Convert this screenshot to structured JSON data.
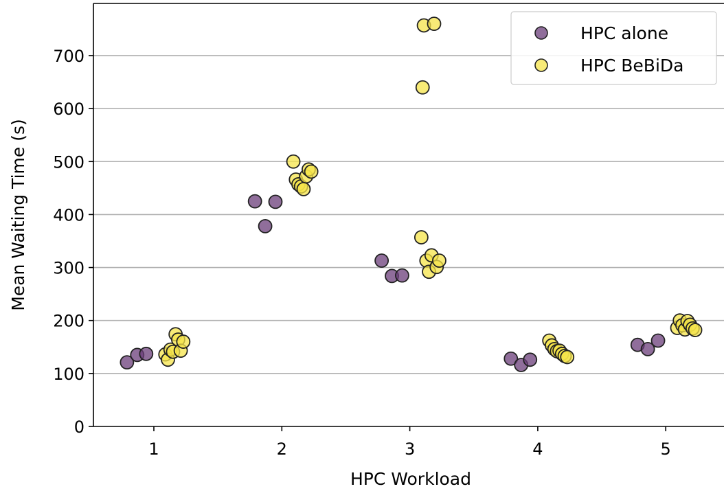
{
  "chart_data": {
    "type": "scatter",
    "xlabel": "HPC Workload",
    "ylabel": "Mean Waiting Time (s)",
    "xlim": [
      0.5,
      5.5
    ],
    "ylim": [
      0,
      800
    ],
    "xticks": [
      1,
      2,
      3,
      4,
      5
    ],
    "yticks": [
      0,
      100,
      200,
      300,
      400,
      500,
      600,
      700
    ],
    "grid": "horizontal",
    "legend_position": "top-right",
    "series": [
      {
        "name": "HPC alone",
        "color": "#6b3e7a",
        "points": [
          {
            "x": 0.79,
            "y": 121
          },
          {
            "x": 0.87,
            "y": 135
          },
          {
            "x": 0.94,
            "y": 137
          },
          {
            "x": 1.79,
            "y": 425
          },
          {
            "x": 1.87,
            "y": 378
          },
          {
            "x": 1.95,
            "y": 424
          },
          {
            "x": 2.78,
            "y": 313
          },
          {
            "x": 2.86,
            "y": 284
          },
          {
            "x": 2.94,
            "y": 285
          },
          {
            "x": 3.79,
            "y": 128
          },
          {
            "x": 3.87,
            "y": 116
          },
          {
            "x": 3.94,
            "y": 126
          },
          {
            "x": 4.78,
            "y": 154
          },
          {
            "x": 4.86,
            "y": 146
          },
          {
            "x": 4.94,
            "y": 162
          }
        ]
      },
      {
        "name": "HPC BeBiDa",
        "color": "#f5e44a",
        "points": [
          {
            "x": 1.09,
            "y": 136
          },
          {
            "x": 1.11,
            "y": 126
          },
          {
            "x": 1.13,
            "y": 145
          },
          {
            "x": 1.15,
            "y": 141
          },
          {
            "x": 1.17,
            "y": 174
          },
          {
            "x": 1.19,
            "y": 164
          },
          {
            "x": 1.21,
            "y": 143
          },
          {
            "x": 1.23,
            "y": 160
          },
          {
            "x": 2.09,
            "y": 500
          },
          {
            "x": 2.11,
            "y": 466
          },
          {
            "x": 2.13,
            "y": 457
          },
          {
            "x": 2.15,
            "y": 453
          },
          {
            "x": 2.17,
            "y": 448
          },
          {
            "x": 2.19,
            "y": 472
          },
          {
            "x": 2.21,
            "y": 485
          },
          {
            "x": 2.23,
            "y": 481
          },
          {
            "x": 3.09,
            "y": 357
          },
          {
            "x": 3.1,
            "y": 640
          },
          {
            "x": 3.11,
            "y": 757
          },
          {
            "x": 3.13,
            "y": 313
          },
          {
            "x": 3.15,
            "y": 292
          },
          {
            "x": 3.17,
            "y": 323
          },
          {
            "x": 3.19,
            "y": 760
          },
          {
            "x": 3.21,
            "y": 301
          },
          {
            "x": 3.23,
            "y": 313
          },
          {
            "x": 4.09,
            "y": 162
          },
          {
            "x": 4.11,
            "y": 153
          },
          {
            "x": 4.13,
            "y": 146
          },
          {
            "x": 4.15,
            "y": 142
          },
          {
            "x": 4.17,
            "y": 143
          },
          {
            "x": 4.19,
            "y": 137
          },
          {
            "x": 4.21,
            "y": 133
          },
          {
            "x": 4.23,
            "y": 131
          },
          {
            "x": 5.09,
            "y": 186
          },
          {
            "x": 5.11,
            "y": 200
          },
          {
            "x": 5.13,
            "y": 191
          },
          {
            "x": 5.15,
            "y": 183
          },
          {
            "x": 5.17,
            "y": 199
          },
          {
            "x": 5.19,
            "y": 192
          },
          {
            "x": 5.21,
            "y": 185
          },
          {
            "x": 5.23,
            "y": 182
          }
        ]
      }
    ]
  }
}
